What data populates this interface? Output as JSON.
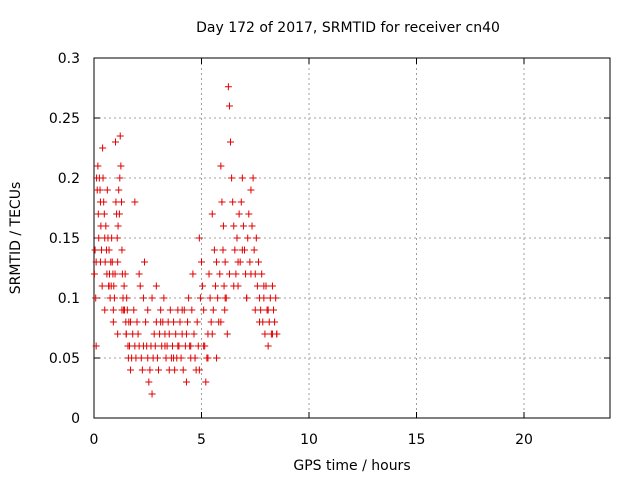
{
  "chart_data": {
    "type": "scatter",
    "title": "Day 172 of 2017, SRMTID for receiver cn40",
    "xlabel": "GPS time / hours",
    "ylabel": "SRMTID / TECUs",
    "xlim": [
      0,
      24
    ],
    "ylim": [
      0,
      0.3
    ],
    "xticks": [
      0,
      5,
      10,
      15,
      20
    ],
    "xtick_labels": [
      "0",
      "5",
      "10",
      "15",
      "20"
    ],
    "yticks": [
      0,
      0.05,
      0.1,
      0.15,
      0.2,
      0.25,
      0.3
    ],
    "ytick_labels": [
      "0",
      "0.05",
      "0.1",
      "0.15",
      "0.2",
      "0.25",
      "0.3"
    ],
    "grid": true,
    "marker": "plus",
    "color": "#e00000",
    "series": [
      {
        "name": "SRMTID",
        "x": [
          0.02,
          0.05,
          0.08,
          0.1,
          0.12,
          0.15,
          0.18,
          0.2,
          0.22,
          0.25,
          0.28,
          0.3,
          0.32,
          0.35,
          0.38,
          0.4,
          0.42,
          0.45,
          0.48,
          0.5,
          0.52,
          0.55,
          0.58,
          0.6,
          0.62,
          0.65,
          0.68,
          0.7,
          0.72,
          0.75,
          0.78,
          0.8,
          0.82,
          0.85,
          0.88,
          0.9,
          0.92,
          0.95,
          0.98,
          1.0,
          1.02,
          1.05,
          1.08,
          1.1,
          1.12,
          1.15,
          1.18,
          1.2,
          1.22,
          1.25,
          1.28,
          1.3,
          1.32,
          1.35,
          1.38,
          1.4,
          1.42,
          1.45,
          1.48,
          1.5,
          1.52,
          1.55,
          1.58,
          1.6,
          1.62,
          1.65,
          1.7,
          1.75,
          1.8,
          1.85,
          1.9,
          1.95,
          2.0,
          2.05,
          2.1,
          2.15,
          2.2,
          2.25,
          2.3,
          2.35,
          2.4,
          2.45,
          2.5,
          2.55,
          2.6,
          2.65,
          2.7,
          2.75,
          2.8,
          2.85,
          2.9,
          2.95,
          3.0,
          3.05,
          3.1,
          3.15,
          3.2,
          3.25,
          3.3,
          3.35,
          3.4,
          3.45,
          3.5,
          3.55,
          3.6,
          3.65,
          3.7,
          3.75,
          3.8,
          3.85,
          3.9,
          3.95,
          4.0,
          4.05,
          4.1,
          4.15,
          4.2,
          4.25,
          4.3,
          4.35,
          4.4,
          4.45,
          4.5,
          4.55,
          4.6,
          4.65,
          4.7,
          4.75,
          4.8,
          4.85,
          4.9,
          4.95,
          5.0,
          5.05,
          5.1,
          5.15,
          5.2,
          5.25,
          5.3,
          5.35,
          5.4,
          5.45,
          5.5,
          5.55,
          5.6,
          5.65,
          5.7,
          5.75,
          5.8,
          5.85,
          5.9,
          5.95,
          6.0,
          6.02,
          6.05,
          6.08,
          6.1,
          6.15,
          6.2,
          6.25,
          6.3,
          6.35,
          6.4,
          6.45,
          6.5,
          6.55,
          6.6,
          6.65,
          6.7,
          6.75,
          6.8,
          6.85,
          6.9,
          6.95,
          7.0,
          7.05,
          7.1,
          7.15,
          7.2,
          7.25,
          7.3,
          7.35,
          7.4,
          7.45,
          7.5,
          7.55,
          7.6,
          7.65,
          7.7,
          7.75,
          7.8,
          7.85,
          7.9,
          7.95,
          8.0,
          8.05,
          8.1,
          8.15,
          8.2,
          8.25,
          8.3,
          8.35,
          8.4,
          8.45,
          8.5,
          0.1,
          0.3,
          0.5,
          0.7,
          0.9,
          1.1,
          1.3,
          1.5,
          1.7,
          1.9,
          2.1,
          2.3,
          2.5,
          2.7,
          2.9,
          3.1,
          3.3,
          3.5,
          3.7,
          3.9,
          4.1,
          4.3,
          4.5,
          4.7,
          4.9,
          5.1,
          5.3,
          5.5,
          5.7,
          5.9,
          6.1,
          6.3,
          6.5,
          6.7,
          6.9,
          7.1,
          7.3,
          7.5,
          7.7,
          7.9,
          8.1,
          8.3,
          8.5
        ],
        "y": [
          0.12,
          0.14,
          0.1,
          0.13,
          0.2,
          0.19,
          0.21,
          0.17,
          0.15,
          0.2,
          0.19,
          0.18,
          0.16,
          0.14,
          0.11,
          0.225,
          0.2,
          0.18,
          0.17,
          0.15,
          0.13,
          0.16,
          0.14,
          0.12,
          0.19,
          0.15,
          0.11,
          0.14,
          0.12,
          0.1,
          0.13,
          0.11,
          0.15,
          0.13,
          0.12,
          0.09,
          0.11,
          0.1,
          0.12,
          0.23,
          0.18,
          0.17,
          0.15,
          0.13,
          0.16,
          0.19,
          0.17,
          0.2,
          0.235,
          0.21,
          0.18,
          0.14,
          0.12,
          0.1,
          0.09,
          0.11,
          0.09,
          0.12,
          0.08,
          0.07,
          0.1,
          0.09,
          0.06,
          0.05,
          0.08,
          0.06,
          0.04,
          0.05,
          0.07,
          0.09,
          0.06,
          0.05,
          0.08,
          0.07,
          0.06,
          0.11,
          0.05,
          0.04,
          0.06,
          0.13,
          0.08,
          0.06,
          0.05,
          0.03,
          0.04,
          0.06,
          0.02,
          0.05,
          0.07,
          0.06,
          0.08,
          0.05,
          0.04,
          0.07,
          0.09,
          0.06,
          0.08,
          0.1,
          0.07,
          0.05,
          0.06,
          0.08,
          0.07,
          0.09,
          0.05,
          0.06,
          0.08,
          0.04,
          0.07,
          0.05,
          0.09,
          0.06,
          0.08,
          0.05,
          0.07,
          0.04,
          0.09,
          0.06,
          0.03,
          0.08,
          0.1,
          0.06,
          0.05,
          0.09,
          0.12,
          0.07,
          0.05,
          0.04,
          0.08,
          0.06,
          0.15,
          0.1,
          0.13,
          0.11,
          0.09,
          0.06,
          0.03,
          0.05,
          0.07,
          0.12,
          0.1,
          0.08,
          0.17,
          0.09,
          0.14,
          0.11,
          0.13,
          0.1,
          0.08,
          0.12,
          0.21,
          0.18,
          0.14,
          0.16,
          0.11,
          0.09,
          0.13,
          0.1,
          0.07,
          0.276,
          0.26,
          0.23,
          0.2,
          0.18,
          0.16,
          0.14,
          0.12,
          0.15,
          0.11,
          0.17,
          0.13,
          0.18,
          0.2,
          0.16,
          0.14,
          0.12,
          0.1,
          0.15,
          0.17,
          0.13,
          0.19,
          0.16,
          0.2,
          0.14,
          0.12,
          0.15,
          0.11,
          0.13,
          0.1,
          0.09,
          0.12,
          0.08,
          0.1,
          0.07,
          0.11,
          0.09,
          0.06,
          0.08,
          0.1,
          0.07,
          0.11,
          0.09,
          0.08,
          0.1,
          0.07,
          0.06,
          0.13,
          0.09,
          0.11,
          0.08,
          0.07,
          0.09,
          0.07,
          0.08,
          0.18,
          0.12,
          0.1,
          0.09,
          0.1,
          0.11,
          0.08,
          0.06,
          0.04,
          0.05,
          0.06,
          0.09,
          0.07,
          0.06,
          0.05,
          0.04,
          0.06,
          0.05,
          0.07,
          0.05,
          0.08,
          0.1,
          0.12,
          0.11,
          0.13,
          0.14,
          0.1,
          0.12,
          0.09,
          0.08,
          0.11,
          0.09,
          0.07,
          0.07
        ]
      }
    ]
  }
}
